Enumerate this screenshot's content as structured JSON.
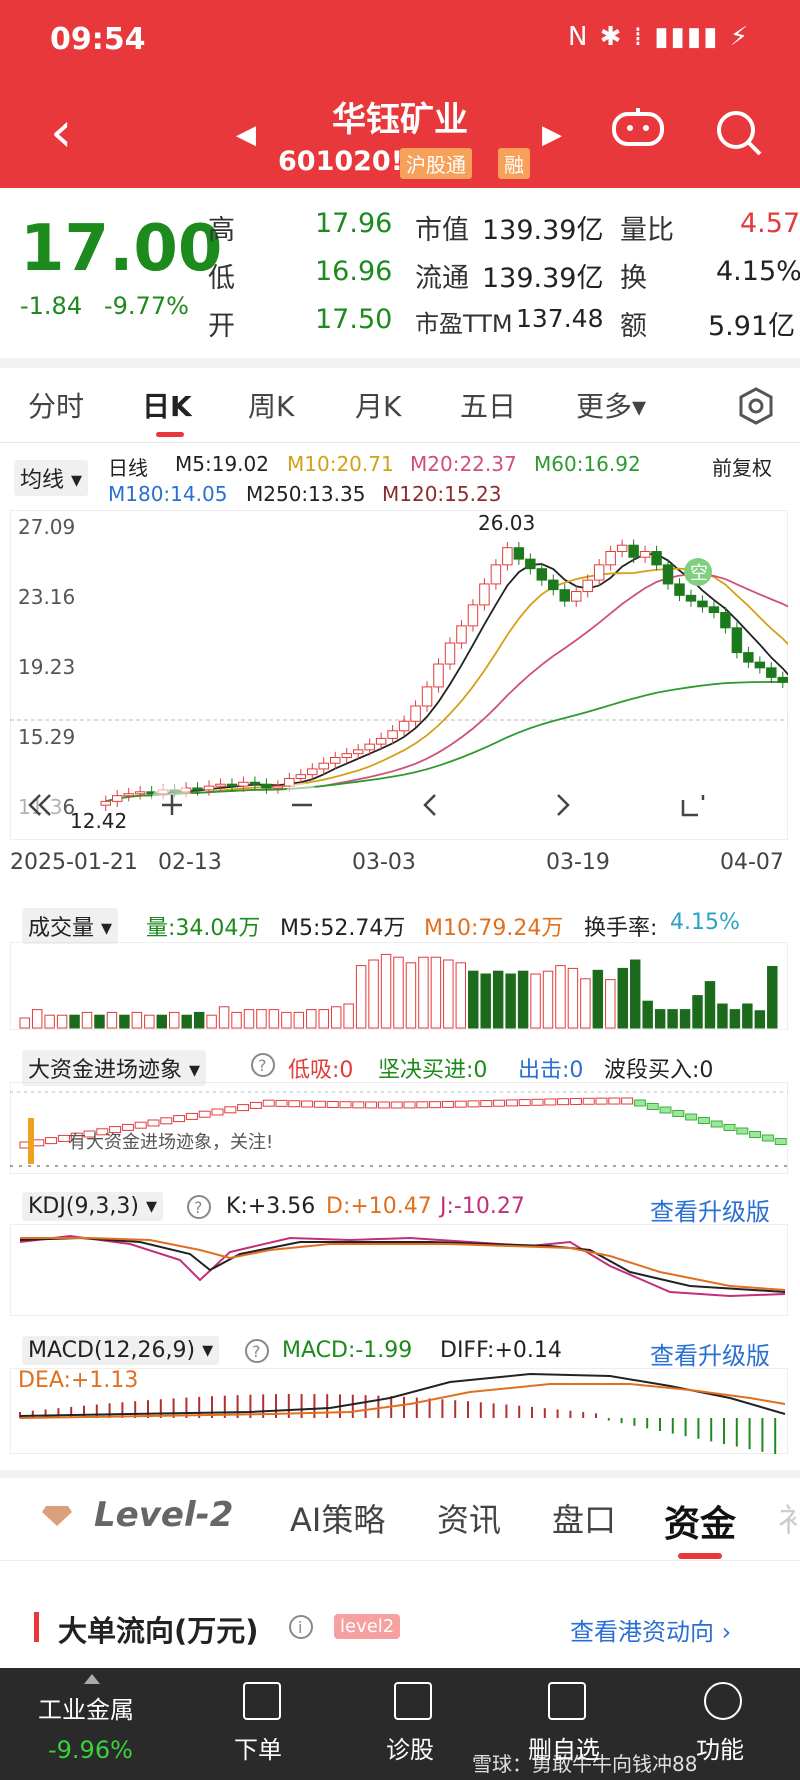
{
  "status": {
    "time": "09:54",
    "icons": "N ✱ ⁞ ▮▮▮▮ ⚡"
  },
  "header": {
    "back_label": "‹",
    "name": "华钰矿业",
    "code": "601020",
    "code_mark": "!",
    "badges": [
      "沪股通",
      "融"
    ],
    "prev": "◀",
    "next": "▶"
  },
  "quote": {
    "price": "17.00",
    "change": "-1.84",
    "change_pct": "-9.77%",
    "fields": [
      {
        "label": "高",
        "value": "17.96"
      },
      {
        "label": "低",
        "value": "16.96"
      },
      {
        "label": "开",
        "value": "17.50"
      }
    ],
    "fields2": [
      {
        "label": "市值",
        "value": "139.39亿"
      },
      {
        "label": "流通",
        "value": "139.39亿"
      },
      {
        "label": "市盈TTM",
        "value": "137.48"
      }
    ],
    "fields3": [
      {
        "label": "量比",
        "value": "4.57"
      },
      {
        "label": "换",
        "value": "4.15%"
      },
      {
        "label": "额",
        "value": "5.91亿"
      }
    ]
  },
  "period_tabs": [
    "分时",
    "日K",
    "周K",
    "月K",
    "五日",
    "更多▾"
  ],
  "kline": {
    "ma_select": "均线 ▾",
    "line_type": "日线",
    "restore": "前复权",
    "ma": [
      {
        "label": "M5:19.02",
        "color": "#222222"
      },
      {
        "label": "M10:20.71",
        "color": "#d4a017"
      },
      {
        "label": "M20:22.37",
        "color": "#d0507a"
      },
      {
        "label": "M60:16.92",
        "color": "#2e9a2e"
      },
      {
        "label": "M180:14.05",
        "color": "#2a6fd6"
      },
      {
        "label": "M250:13.35",
        "color": "#444444"
      },
      {
        "label": "M120:15.23",
        "color": "#8b2d2d"
      }
    ],
    "y_ticks": [
      "27.09",
      "23.16",
      "19.23",
      "15.29",
      "11.36"
    ],
    "x_ticks": [
      "2025-01-21",
      "02-13",
      "03-03",
      "03-19",
      "04-07"
    ],
    "high_mark": "26.03",
    "low_mark": "12.42",
    "empty_mark": "空"
  },
  "volume": {
    "select": "成交量 ▾",
    "vol": "量:34.04万",
    "m5": "M5:52.74万",
    "m10": "M10:79.24万",
    "turn_label": "换手率:",
    "turn_value": "4.15%"
  },
  "bigfund": {
    "select": "大资金进场迹象 ▾",
    "low": "低吸:0",
    "firm": "坚决买进:0",
    "out": "出击:0",
    "wave": "波段买入:0",
    "note": "有大资金进场迹象，关注!"
  },
  "kdj": {
    "select": "KDJ(9,3,3) ▾",
    "k": "K:+3.56",
    "d": "D:+10.47",
    "j": "J:-10.27",
    "upgrade": "查看升级版"
  },
  "macd": {
    "select": "MACD(12,26,9) ▾",
    "macd": "MACD:-1.99",
    "diff": "DIFF:+0.14",
    "dea": "DEA:+1.13",
    "upgrade": "查看升级版"
  },
  "info_tabs": [
    "Level-2",
    "AI策略",
    "资讯",
    "盘口",
    "资金",
    "衤"
  ],
  "bigorder": {
    "title": "大单流向(万元)",
    "badge": "level2",
    "link": "查看港资动向 ›"
  },
  "bottom": {
    "sector_name": "工业金属",
    "sector_pct": "-9.96%",
    "nav": [
      "下单",
      "诊股",
      "删自选",
      "功能"
    ],
    "watermark": "雪球：勇敢牛牛向钱冲88"
  },
  "chart_data": {
    "type": "candlestick",
    "y_range": [
      11.36,
      27.09
    ],
    "x_labels": [
      "2025-01-21",
      "02-13",
      "03-03",
      "03-19",
      "04-07"
    ],
    "last": {
      "close": 17.0,
      "high": 17.96,
      "low": 16.96,
      "open": 17.5
    },
    "max": 26.03,
    "min": 12.42
  }
}
